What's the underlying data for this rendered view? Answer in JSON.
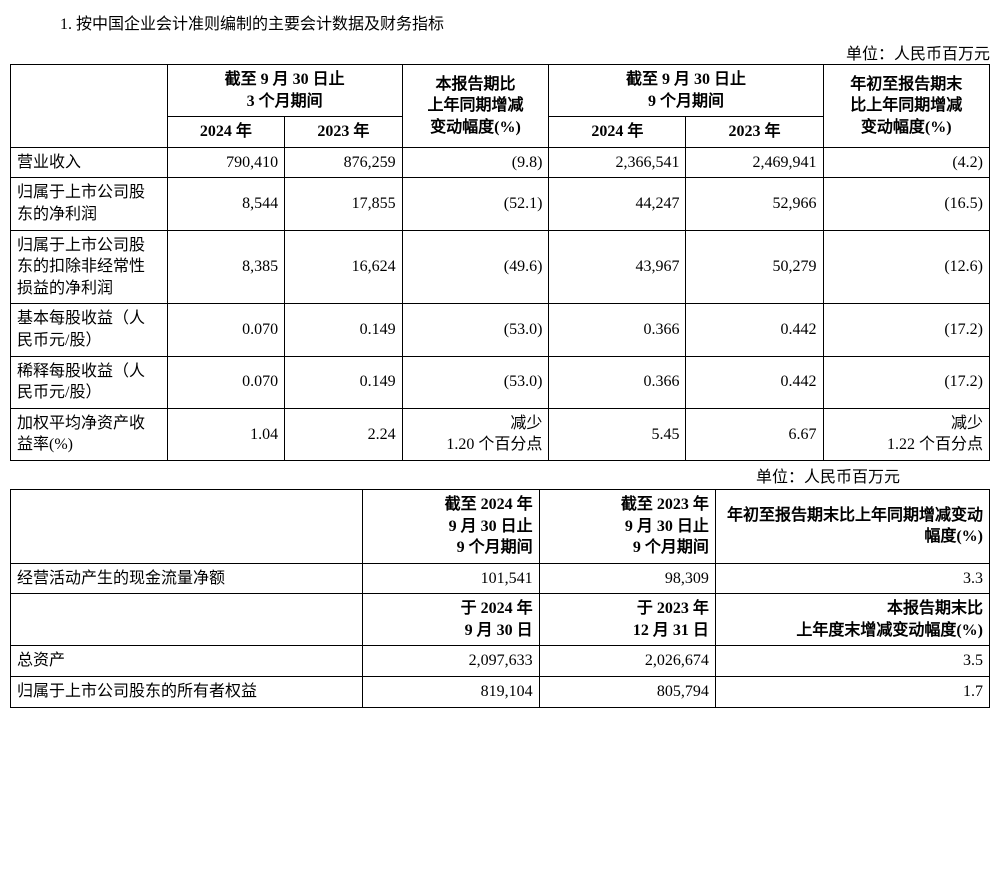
{
  "title": "1. 按中国企业会计准则编制的主要会计数据及财务指标",
  "unit_label": "单位：人民币百万元",
  "table1": {
    "hdr_3m": "截至 9 月 30 日止\n3 个月期间",
    "hdr_3m_chg": "本报告期比\n上年同期增减\n变动幅度(%)",
    "hdr_9m": "截至 9 月 30 日止\n9 个月期间",
    "hdr_9m_chg": "年初至报告期末\n比上年同期增减\n变动幅度(%)",
    "y2024": "2024 年",
    "y2023": "2023 年",
    "rows": [
      {
        "label": "营业收入",
        "a": "790,410",
        "b": "876,259",
        "c": "(9.8)",
        "d": "2,366,541",
        "e": "2,469,941",
        "f": "(4.2)"
      },
      {
        "label": "归属于上市公司股东的净利润",
        "a": "8,544",
        "b": "17,855",
        "c": "(52.1)",
        "d": "44,247",
        "e": "52,966",
        "f": "(16.5)"
      },
      {
        "label": "归属于上市公司股东的扣除非经常性损益的净利润",
        "a": "8,385",
        "b": "16,624",
        "c": "(49.6)",
        "d": "43,967",
        "e": "50,279",
        "f": "(12.6)"
      },
      {
        "label": "基本每股收益（人民币元/股）",
        "a": "0.070",
        "b": "0.149",
        "c": "(53.0)",
        "d": "0.366",
        "e": "0.442",
        "f": "(17.2)"
      },
      {
        "label": "稀释每股收益（人民币元/股）",
        "a": "0.070",
        "b": "0.149",
        "c": "(53.0)",
        "d": "0.366",
        "e": "0.442",
        "f": "(17.2)"
      },
      {
        "label": "加权平均净资产收益率(%)",
        "a": "1.04",
        "b": "2.24",
        "c": "减少\n1.20 个百分点",
        "d": "5.45",
        "e": "6.67",
        "f": "减少\n1.22 个百分点"
      }
    ]
  },
  "table2": {
    "hdr_p1_a": "截至 2024 年\n9 月 30 日止\n9 个月期间",
    "hdr_p1_b": "截至 2023 年\n9 月 30 日止\n9 个月期间",
    "hdr_p1_c": "年初至报告期末比上年同期增减变动幅度(%)",
    "row_cf": {
      "label": "经营活动产生的现金流量净额",
      "a": "101,541",
      "b": "98,309",
      "c": "3.3"
    },
    "hdr_p2_a": "于 2024 年\n9 月 30 日",
    "hdr_p2_b": "于 2023 年\n12 月 31 日",
    "hdr_p2_c": "本报告期末比\n上年度末增减变动幅度(%)",
    "row_assets": {
      "label": "总资产",
      "a": "2,097,633",
      "b": "2,026,674",
      "c": "3.5"
    },
    "row_equity": {
      "label": "归属于上市公司股东的所有者权益",
      "a": "819,104",
      "b": "805,794",
      "c": "1.7"
    }
  }
}
